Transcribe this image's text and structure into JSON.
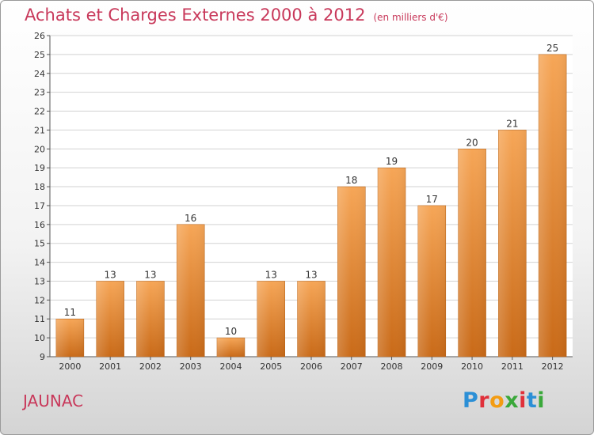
{
  "header": {
    "title": "Achats et Charges Externes 2000 à 2012",
    "unit": "(en milliers d'€)"
  },
  "footer": {
    "place": "JAUNAC",
    "logo_letters": [
      "P",
      "r",
      "o",
      "x",
      "i",
      "t",
      "i"
    ],
    "logo_colors": [
      "#2b8fd6",
      "#e0303a",
      "#f39c12",
      "#3aa83a",
      "#e0303a",
      "#2b8fd6",
      "#3aa83a"
    ]
  },
  "chart_data": {
    "type": "bar",
    "categories": [
      "2000",
      "2001",
      "2002",
      "2003",
      "2004",
      "2005",
      "2006",
      "2007",
      "2008",
      "2009",
      "2010",
      "2011",
      "2012"
    ],
    "values": [
      11,
      13,
      13,
      16,
      10,
      13,
      13,
      18,
      19,
      17,
      20,
      21,
      25
    ],
    "ylim": [
      9,
      26
    ],
    "yticks": [
      9,
      10,
      11,
      12,
      13,
      14,
      15,
      16,
      17,
      18,
      19,
      20,
      21,
      22,
      23,
      24,
      25,
      26
    ],
    "grid": true,
    "bar_color": "#f08a2c"
  }
}
